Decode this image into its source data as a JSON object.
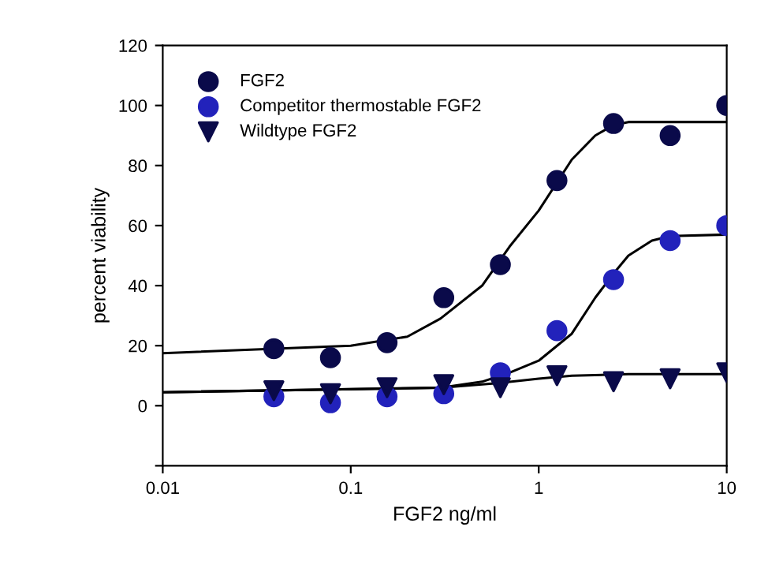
{
  "chart_data": {
    "type": "scatter",
    "xlabel": "FGF2 ng/ml",
    "ylabel": "percent viability",
    "log": "x",
    "xlim": [
      0.01,
      10
    ],
    "xticks": [
      0.01,
      0.1,
      1,
      10
    ],
    "ylim": [
      -20,
      120
    ],
    "yticks": [
      {
        "value": -20,
        "label": null
      },
      0,
      20,
      40,
      60,
      80,
      100,
      120
    ],
    "grid": false,
    "legend": "top left",
    "x": [
      0.039,
      0.078,
      0.156,
      0.3125,
      0.625,
      1.25,
      2.5,
      5,
      10
    ],
    "series": [
      {
        "name": "FGF2",
        "color": "#0a0a4a",
        "marker": "circle",
        "values": [
          19,
          16,
          21,
          36,
          47,
          75,
          94,
          90,
          100
        ]
      },
      {
        "name": "Competitor thermostable FGF2",
        "color": "#2222bb",
        "marker": "circle",
        "values": [
          3,
          1,
          3,
          4,
          11,
          25,
          42,
          55,
          60
        ]
      },
      {
        "name": "Wildtype FGF2",
        "color": "#0a0a4a",
        "marker": "triangle",
        "values": [
          5,
          4,
          6,
          7,
          6,
          10,
          8,
          9,
          11
        ]
      },
      {
        "type": "line",
        "color": "#000000",
        "marker": "none",
        "x": [
          0.01,
          0.1,
          0.2,
          0.3,
          0.5,
          0.7,
          1,
          1.5,
          2,
          2.5,
          3,
          10
        ],
        "values": [
          17.5,
          20,
          23,
          29,
          40,
          53,
          65,
          82,
          90,
          93.5,
          94.5,
          94.5
        ]
      },
      {
        "type": "line",
        "color": "#000000",
        "marker": "none",
        "x": [
          0.01,
          0.3,
          0.5,
          0.7,
          1,
          1.5,
          2,
          2.5,
          3,
          4,
          5,
          10
        ],
        "values": [
          4.5,
          6,
          8,
          11,
          15,
          24,
          36,
          44,
          50,
          55,
          56.5,
          57
        ]
      },
      {
        "type": "line",
        "color": "#000000",
        "marker": "none",
        "x": [
          0.01,
          0.3,
          0.6,
          1,
          1.5,
          3,
          10
        ],
        "values": [
          4.5,
          6,
          7.5,
          9,
          10,
          10.5,
          10.5
        ]
      }
    ]
  }
}
